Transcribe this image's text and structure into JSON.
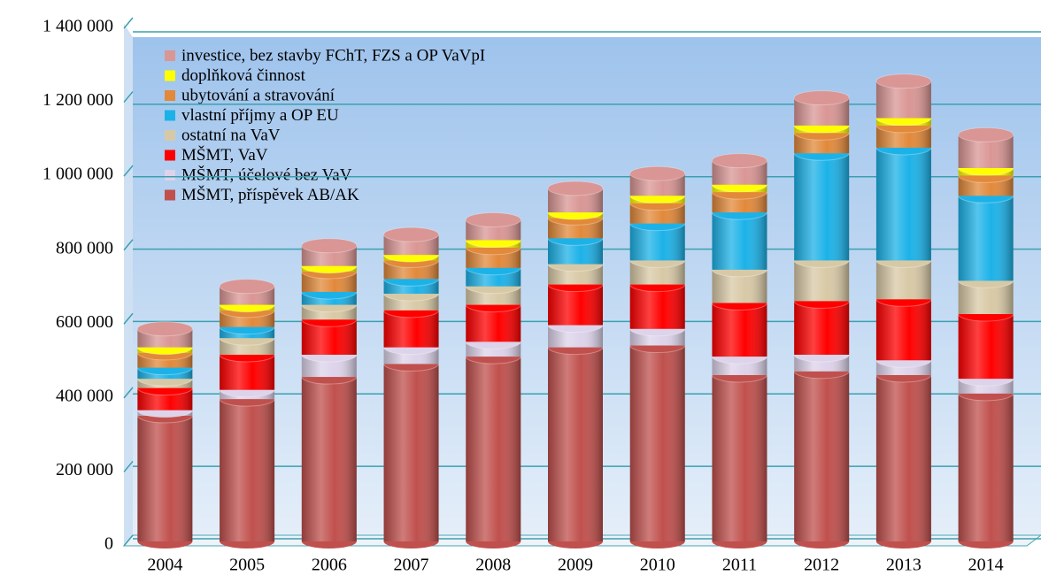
{
  "chart_data": {
    "type": "bar",
    "stacked": true,
    "categories": [
      "2004",
      "2005",
      "2006",
      "2007",
      "2008",
      "2009",
      "2010",
      "2011",
      "2012",
      "2013",
      "2014"
    ],
    "series": [
      {
        "name": "MŠMT, příspěvek AB/AK",
        "color": "#c0504d",
        "values": [
          340000,
          385000,
          445000,
          480000,
          500000,
          525000,
          530000,
          450000,
          460000,
          450000,
          400000
        ]
      },
      {
        "name": "MŠMT, účelové bez VaV",
        "color": "#ddd3ea",
        "values": [
          15000,
          25000,
          60000,
          45000,
          40000,
          60000,
          45000,
          50000,
          45000,
          40000,
          40000
        ]
      },
      {
        "name": "MŠMT, VaV",
        "color": "#ff0000",
        "values": [
          60000,
          95000,
          95000,
          100000,
          100000,
          110000,
          120000,
          145000,
          145000,
          165000,
          175000
        ]
      },
      {
        "name": "ostatní na VaV",
        "color": "#d8c9a6",
        "values": [
          25000,
          45000,
          40000,
          45000,
          50000,
          55000,
          65000,
          90000,
          110000,
          105000,
          90000
        ]
      },
      {
        "name": "vlastní příjmy a OP EU",
        "color": "#1cb2e8",
        "values": [
          30000,
          30000,
          35000,
          40000,
          50000,
          70000,
          100000,
          155000,
          290000,
          305000,
          230000
        ]
      },
      {
        "name": "ubytování a stravování",
        "color": "#e2893a",
        "values": [
          40000,
          45000,
          55000,
          50000,
          55000,
          55000,
          55000,
          55000,
          55000,
          60000,
          55000
        ]
      },
      {
        "name": "doplňková činnost",
        "color": "#ffff00",
        "values": [
          15000,
          15000,
          15000,
          15000,
          20000,
          15000,
          20000,
          20000,
          20000,
          20000,
          20000
        ]
      },
      {
        "name": "investice, bez stavby FChT, FZS a OP VaVpI",
        "color": "#d99694",
        "values": [
          50000,
          50000,
          55000,
          55000,
          55000,
          65000,
          60000,
          65000,
          75000,
          100000,
          90000
        ]
      }
    ],
    "ylim": [
      0,
      1400000
    ],
    "yticks": [
      0,
      {
        "value": 200000,
        "label": "200 000"
      },
      {
        "value": 400000,
        "label": "400 000"
      },
      {
        "value": 600000,
        "label": "600 000"
      },
      {
        "value": 800000,
        "label": "800 000"
      },
      {
        "value": 1000000,
        "label": "1 000 000"
      },
      {
        "value": 1200000,
        "label": "1 200 000"
      },
      {
        "value": 1400000,
        "label": "1 400 000"
      }
    ],
    "grid": true,
    "legend": "upper left"
  }
}
